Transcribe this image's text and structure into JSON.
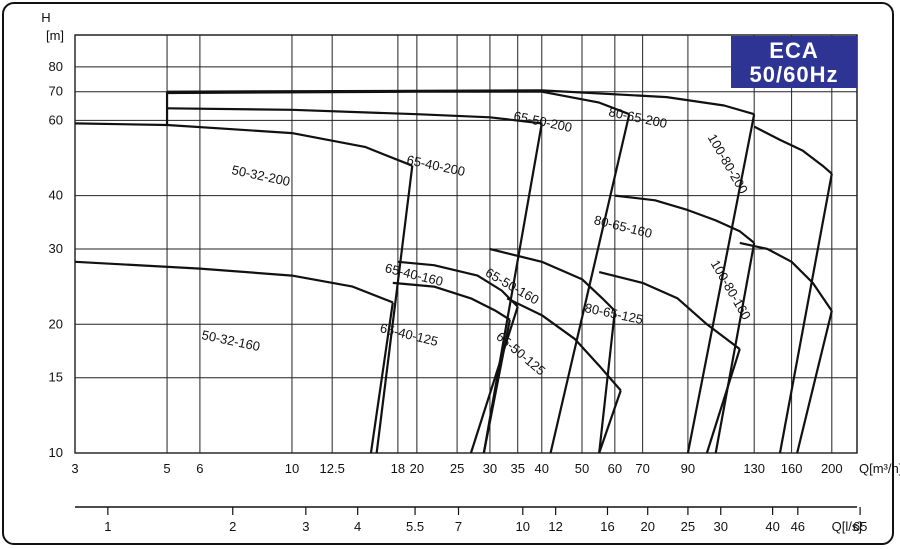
{
  "badge": {
    "line1": "ECA",
    "line2": "50/60Hz",
    "color": "#2d3494"
  },
  "chart_data": {
    "type": "line",
    "title": "",
    "ylabel_top": "H",
    "ylabel_unit": "[m]",
    "xlabel": "Q[m³/h]",
    "xlabel2": "Q[l/s]",
    "x_scale": "log",
    "y_scale": "log",
    "xlim": [
      3,
      230
    ],
    "ylim": [
      10,
      95
    ],
    "grid": true,
    "x_ticks": [
      3,
      5,
      6,
      10,
      12.5,
      18,
      20,
      25,
      30,
      35,
      40,
      50,
      60,
      70,
      90,
      130,
      160,
      200
    ],
    "x_tick_labels": [
      "3",
      "5",
      "6",
      "10",
      "12.5",
      "18",
      "20",
      "25",
      "30",
      "35",
      "40",
      "50",
      "60",
      "70",
      "90",
      "130",
      "160",
      "200"
    ],
    "y_ticks": [
      10,
      15,
      20,
      30,
      40,
      60,
      70,
      80
    ],
    "y_tick_labels": [
      "10",
      "15",
      "20",
      "30",
      "40",
      "60",
      "70",
      "80"
    ],
    "x2_ticks": [
      1,
      2,
      3,
      4,
      5.5,
      7,
      10,
      12,
      16,
      20,
      25,
      30,
      40,
      46,
      65
    ],
    "x2_tick_labels": [
      "1",
      "2",
      "3",
      "4",
      "5.5",
      "7",
      "10",
      "12",
      "16",
      "20",
      "25",
      "30",
      "40",
      "46",
      "65"
    ],
    "series": [
      {
        "name": "50-32-200",
        "x": [
          3,
          5,
          10,
          15,
          19.5
        ],
        "y": [
          59,
          58.5,
          56,
          52,
          47
        ]
      },
      {
        "name": "65-40-200",
        "x": [
          5,
          10,
          20,
          30,
          40
        ],
        "y": [
          64,
          63.5,
          62,
          61,
          59
        ]
      },
      {
        "name": "65-50-200",
        "x": [
          5,
          20,
          40,
          55,
          65
        ],
        "y": [
          69.5,
          70,
          70,
          66,
          62
        ]
      },
      {
        "name": "80-65-200",
        "x": [
          5,
          40,
          80,
          110,
          130
        ],
        "y": [
          70,
          70.5,
          68,
          65,
          62
        ]
      },
      {
        "name": "100-80-200",
        "x": [
          130,
          150,
          170,
          190,
          200
        ],
        "y": [
          58,
          54,
          51,
          47,
          45
        ]
      },
      {
        "name": "50-32-160",
        "x": [
          3,
          6,
          10,
          14,
          17.5
        ],
        "y": [
          28,
          27,
          26,
          24.5,
          22.5
        ]
      },
      {
        "name": "65-40-160",
        "x": [
          18,
          22,
          28,
          32,
          35
        ],
        "y": [
          28,
          27.5,
          26,
          24,
          22
        ]
      },
      {
        "name": "65-50-160",
        "x": [
          30,
          40,
          50,
          56,
          60
        ],
        "y": [
          30,
          28,
          25.5,
          23,
          21.5
        ]
      },
      {
        "name": "80-65-160",
        "x": [
          60,
          75,
          90,
          105,
          120,
          130
        ],
        "y": [
          40,
          39,
          37,
          35,
          33,
          31
        ]
      },
      {
        "name": "100-80-160",
        "x": [
          120,
          140,
          160,
          180,
          200
        ],
        "y": [
          31,
          30,
          28,
          25,
          21.5
        ]
      },
      {
        "name": "65-40-125",
        "x": [
          17.5,
          22,
          27,
          31,
          33.5
        ],
        "y": [
          25,
          24.5,
          23,
          21.5,
          20.5
        ]
      },
      {
        "name": "65-50-125",
        "x": [
          33,
          40,
          48,
          55,
          62
        ],
        "y": [
          23,
          21,
          18.5,
          16,
          14
        ]
      },
      {
        "name": "80-65-125",
        "x": [
          55,
          70,
          85,
          100,
          120
        ],
        "y": [
          26.5,
          25,
          23,
          20,
          17.5
        ]
      }
    ]
  }
}
